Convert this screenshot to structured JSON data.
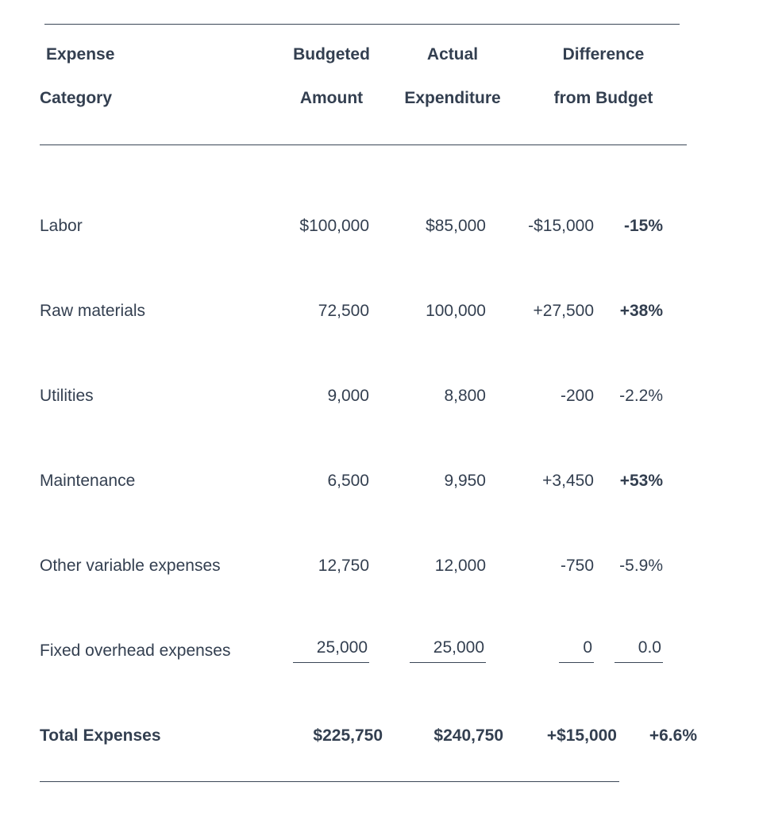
{
  "header": {
    "columns": [
      {
        "line1": "Expense",
        "line2": "Category"
      },
      {
        "line1": "Budgeted",
        "line2": "Amount"
      },
      {
        "line1": "Actual",
        "line2": "Expenditure"
      },
      {
        "line1": "Difference",
        "line2": "from Budget"
      }
    ]
  },
  "rows": [
    {
      "category": "Labor",
      "budgeted": "$100,000",
      "actual": "$85,000",
      "difference": "-$15,000",
      "percent": "-15%"
    },
    {
      "category": "Raw materials",
      "budgeted": "72,500",
      "actual": "100,000",
      "difference": "+27,500",
      "percent": "+38%"
    },
    {
      "category": "Utilities",
      "budgeted": "9,000",
      "actual": "8,800",
      "difference": "-200",
      "percent": "-2.2%"
    },
    {
      "category": "Maintenance",
      "budgeted": "6,500",
      "actual": "9,950",
      "difference": "+3,450",
      "percent": "+53%"
    },
    {
      "category": "Other variable expenses",
      "budgeted": "12,750",
      "actual": "12,000",
      "difference": "-750",
      "percent": "-5.9%"
    },
    {
      "category": "Fixed overhead expenses",
      "budgeted": "25,000",
      "actual": "25,000",
      "difference": "0",
      "percent": "0.0"
    }
  ],
  "total_row": {
    "category": "Total Expenses",
    "budgeted": "$225,750",
    "actual": "$240,750",
    "difference": "+$15,000",
    "percent": "+6.6%"
  },
  "colors": {
    "text": "#333F50",
    "rule": "#3A4656",
    "background": "#FFFFFF"
  }
}
